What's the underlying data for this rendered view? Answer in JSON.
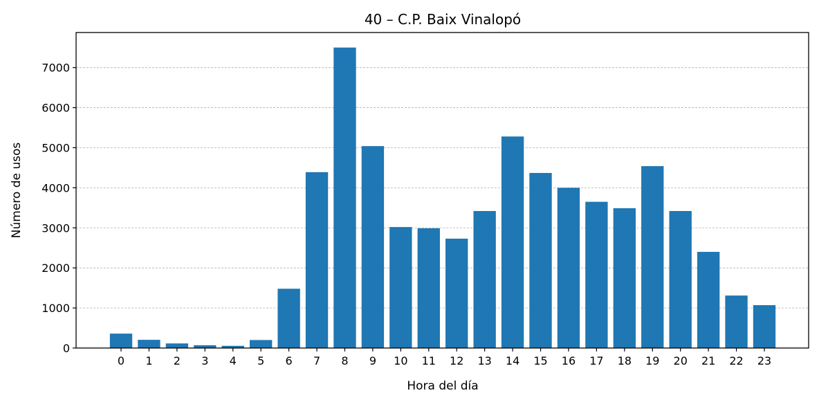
{
  "chart_data": {
    "type": "bar",
    "title": "40 – C.P. Baix Vinalopó",
    "xlabel": "Hora del día",
    "ylabel": "Número de usos",
    "categories": [
      "0",
      "1",
      "2",
      "3",
      "4",
      "5",
      "6",
      "7",
      "8",
      "9",
      "10",
      "11",
      "12",
      "13",
      "14",
      "15",
      "16",
      "17",
      "18",
      "19",
      "20",
      "21",
      "22",
      "23"
    ],
    "values": [
      360,
      205,
      115,
      70,
      55,
      200,
      1480,
      4390,
      7500,
      5040,
      3020,
      2990,
      2730,
      3420,
      5280,
      4370,
      4000,
      3650,
      3490,
      4540,
      3420,
      2400,
      1310,
      1070
    ],
    "ylim": [
      0,
      7875
    ],
    "yticks": [
      0,
      1000,
      2000,
      3000,
      4000,
      5000,
      6000,
      7000
    ],
    "grid": "y-dashed",
    "bar_color": "#1f77b4"
  }
}
